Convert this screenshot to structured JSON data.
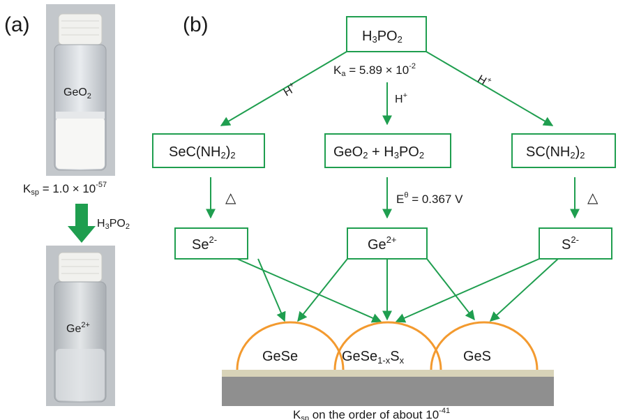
{
  "panel_a": {
    "label": "(a)",
    "vial_top_label": "GeO",
    "vial_top_sub": "2",
    "ksp_k": "K",
    "ksp_sub": "sp",
    "ksp_eq": " = 1.0 × 10",
    "ksp_exp": "-57",
    "reagent_main": "H",
    "reagent_3": "3",
    "reagent_po": "PO",
    "reagent_2": "2",
    "vial_bottom_label": "Ge",
    "vial_bottom_sup": "2+"
  },
  "panel_b": {
    "label": "(b)",
    "top_box": {
      "h": "H",
      "s3": "3",
      "po": "PO",
      "s2": "2"
    },
    "ka": {
      "k": "K",
      "sub": "a",
      "eq": " = 5.89 × 10",
      "exp": "-2"
    },
    "left_arrow_label": {
      "h": "H",
      "sup": "+"
    },
    "mid_arrow_label": {
      "h": "H",
      "sup": "+"
    },
    "right_arrow_label": {
      "h": "H",
      "sup": "+"
    },
    "box_left": {
      "a": "SeC(NH",
      "s": "2",
      "b": ")",
      "s2": "2"
    },
    "box_mid": {
      "a": "GeO",
      "s": "2",
      "b": " + H",
      "s3": "3",
      "c": "PO",
      "s2": "2"
    },
    "box_right": {
      "a": "SC(NH",
      "s": "2",
      "b": ")",
      "s2": "2"
    },
    "heat_left": "△",
    "heat_right": "△",
    "potential": {
      "e": "E",
      "sup": "θ",
      "eq": " = 0.367 V"
    },
    "ion_left": {
      "a": "Se",
      "sup": "2-"
    },
    "ion_mid": {
      "a": "Ge",
      "sup": "2+"
    },
    "ion_right": {
      "a": "S",
      "sup": "2-"
    },
    "product_left": "GeSe",
    "product_mid": {
      "a": "GeSe",
      "sub1": "1-x",
      "b": "S",
      "sub2": "x"
    },
    "product_right": "GeS",
    "bottom_note": {
      "k": "K",
      "sub": "sp",
      "text": " on the order of about 10",
      "exp": "-41"
    }
  },
  "colors": {
    "green": "#1f9e4f",
    "orange": "#f39a2f",
    "substrate_top": "#d8d3b8",
    "substrate": "#8f8f8f"
  }
}
